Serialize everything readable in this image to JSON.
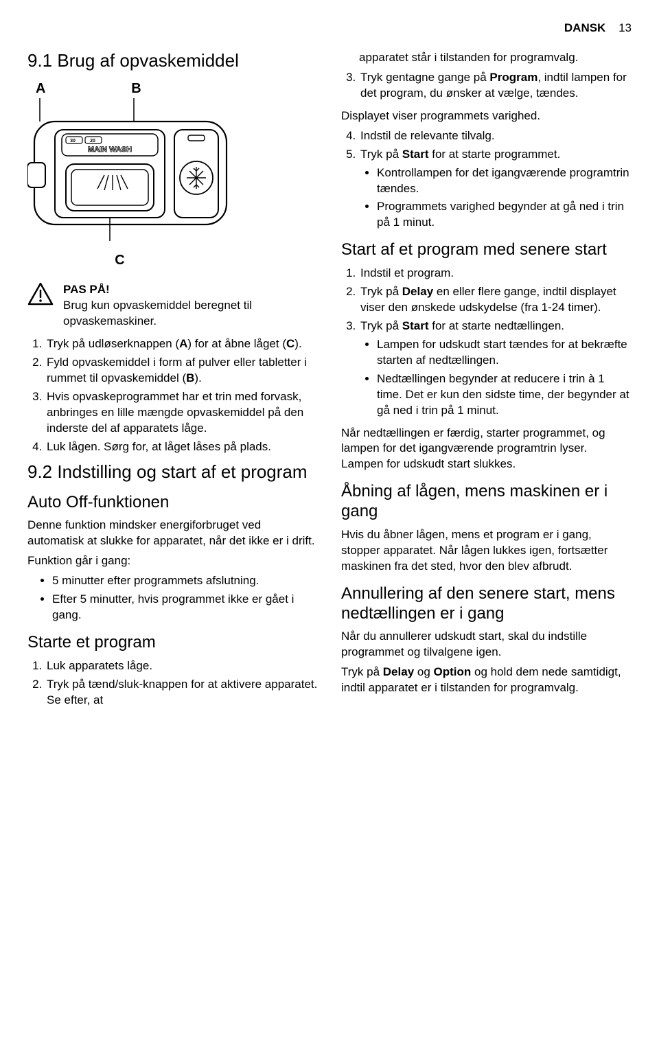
{
  "header": {
    "lang": "DANSK",
    "page": "13"
  },
  "left": {
    "h1": "9.1 Brug af opvaskemiddel",
    "diagram": {
      "labelA": "A",
      "labelB": "B",
      "labelC": "C",
      "mainwash": "MAIN WASH",
      "gauge30": "30",
      "gauge20": "20"
    },
    "caution_title": "PAS PÅ!",
    "caution_body": "Brug kun opvaskemiddel beregnet til opvaskemaskiner.",
    "list1": [
      "Tryk på udløserknappen (<b>A</b>) for at åbne låget (<b>C</b>).",
      "Fyld opvaskemiddel i form af pulver eller tabletter i rummet til opvaskemiddel (<b>B</b>).",
      "Hvis opvaskeprogrammet har et trin med forvask, anbringes en lille mængde opvaskemiddel på den inderste del af apparatets låge.",
      "Luk lågen. Sørg for, at låget låses på plads."
    ],
    "h2": "9.2 Indstilling og start af et program",
    "h3": "Auto Off-funktionen",
    "p1": "Denne funktion mindsker energiforbruget ved automatisk at slukke for apparatet, når det ikke er i drift.",
    "p2": "Funktion går i gang:",
    "bullets1": [
      "5 minutter efter programmets afslutning.",
      "Efter 5 minutter, hvis programmet ikke er gået i gang."
    ],
    "h4": "Starte et program",
    "list2": [
      "Luk apparatets låge.",
      "Tryk på tænd/sluk-knappen for at aktivere apparatet. Se efter, at"
    ]
  },
  "right": {
    "cont": "apparatet står i tilstanden for programvalg.",
    "list3": [
      "Tryk gentagne gange på <b>Program</b>, indtil lampen for det program, du ønsker at vælge, tændes."
    ],
    "p3": "Displayet viser programmets varighed.",
    "list4": [
      "Indstil de relevante tilvalg.",
      "Tryk på <b>Start</b> for at starte programmet."
    ],
    "bullets2": [
      "Kontrollampen for det igangværende programtrin tændes.",
      "Programmets varighed begynder at gå ned i trin på 1 minut."
    ],
    "h5": "Start af et program med senere start",
    "list5": [
      "Indstil et program.",
      "Tryk på <b>Delay</b> en eller flere gange, indtil displayet viser den ønskede udskydelse (fra 1-24 timer).",
      "Tryk på <b>Start</b> for at starte nedtællingen."
    ],
    "bullets3": [
      "Lampen for udskudt start tændes for at bekræfte starten af nedtællingen.",
      "Nedtællingen begynder at reducere i trin à 1 time. Det er kun den sidste time, der begynder at gå ned i trin på 1 minut."
    ],
    "p4": "Når nedtællingen er færdig, starter programmet, og lampen for det igangværende programtrin lyser. Lampen for udskudt start slukkes.",
    "h6": "Åbning af lågen, mens maskinen er i gang",
    "p5": "Hvis du åbner lågen, mens et program er i gang, stopper apparatet. Når lågen lukkes igen, fortsætter maskinen fra det sted, hvor den blev afbrudt.",
    "h7": "Annullering af den senere start, mens nedtællingen er i gang",
    "p6": "Når du annullerer udskudt start, skal du indstille programmet og tilvalgene igen.",
    "p7": "Tryk på <b>Delay</b> og <b>Option</b> og hold dem nede samtidigt, indtil apparatet er i tilstanden for programvalg."
  }
}
